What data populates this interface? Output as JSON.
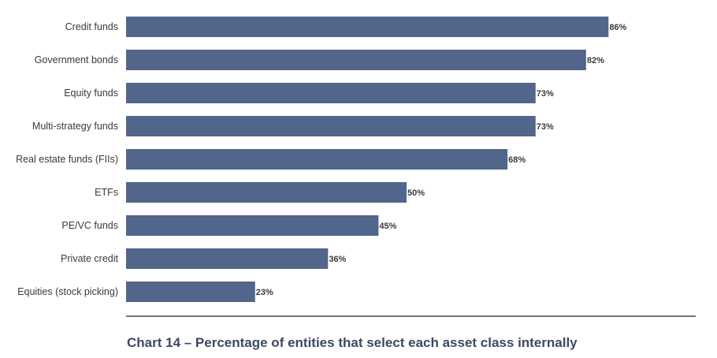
{
  "chart_data": {
    "type": "bar",
    "orientation": "horizontal",
    "title": "Chart 14 – Percentage of entities that select each asset class internally",
    "categories": [
      "Credit funds",
      "Government bonds",
      "Equity funds",
      "Multi-strategy funds",
      "Real estate funds (FIIs)",
      "ETFs",
      "PE/VC funds",
      "Private credit",
      "Equities (stock picking)"
    ],
    "values": [
      86,
      82,
      73,
      73,
      68,
      50,
      45,
      36,
      23
    ],
    "value_labels": [
      "86%",
      "82%",
      "73%",
      "73%",
      "68%",
      "50%",
      "45%",
      "36%",
      "23%"
    ],
    "unit": "%",
    "xlim": [
      0,
      100
    ],
    "grid": false,
    "bar_color": "#52658a"
  }
}
